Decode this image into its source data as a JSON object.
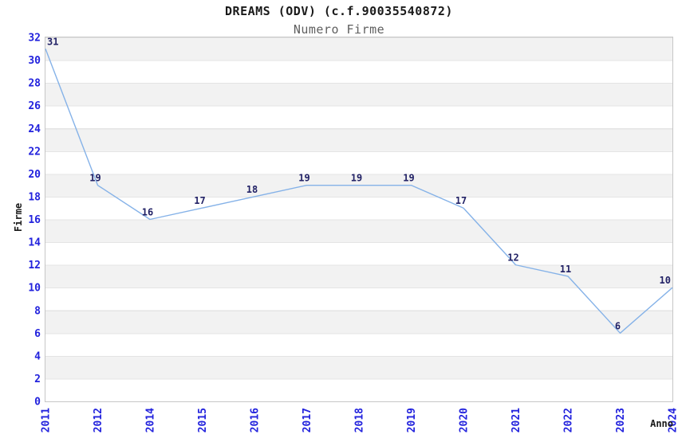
{
  "chart_data": {
    "type": "line",
    "title": "DREAMS (ODV) (c.f.90035540872)",
    "subtitle": "Numero Firme",
    "xlabel": "Anno",
    "ylabel": "Firme",
    "categories": [
      "2011",
      "2012",
      "2014",
      "2015",
      "2016",
      "2017",
      "2018",
      "2019",
      "2020",
      "2021",
      "2022",
      "2023",
      "2024"
    ],
    "values": [
      31,
      19,
      16,
      17,
      18,
      19,
      19,
      19,
      17,
      12,
      11,
      6,
      10
    ],
    "ylim": [
      0,
      32
    ],
    "ytick_step": 2,
    "yticks": [
      0,
      2,
      4,
      6,
      8,
      10,
      12,
      14,
      16,
      18,
      20,
      22,
      24,
      26,
      28,
      30,
      32
    ],
    "grid": "alternating-horizontal-bands",
    "legend": "none",
    "point_labels_visible": true,
    "colors": {
      "line": "#85b2e8",
      "tick_text": "#2222dd",
      "point_label_text": "#222266",
      "band_fill": "#f2f2f2",
      "band_line": "#e4e4e4",
      "plot_border": "#c6c6c6",
      "title_text": "#1a1a1a",
      "subtitle_text": "#5f5f5f"
    }
  }
}
